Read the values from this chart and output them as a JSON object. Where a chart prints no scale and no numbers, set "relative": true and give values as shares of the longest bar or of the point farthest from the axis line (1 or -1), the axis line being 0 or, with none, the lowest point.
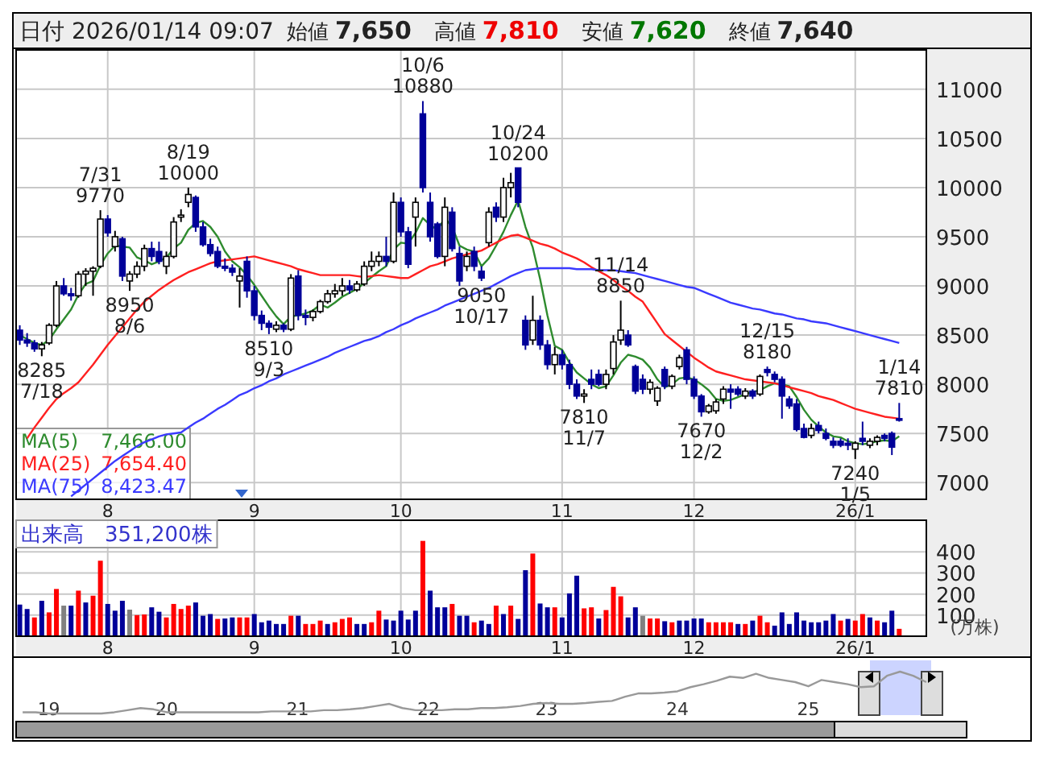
{
  "chart_data": [
    {
      "type": "candlestick",
      "title": "日付 2026/01/14 09:07",
      "categories": [
        null,
        null,
        null,
        null,
        null,
        null,
        null,
        null,
        null,
        null,
        null,
        null,
        "8",
        null,
        null,
        null,
        null,
        null,
        null,
        null,
        null,
        null,
        null,
        null,
        null,
        null,
        null,
        null,
        null,
        null,
        null,
        null,
        "9",
        null,
        null,
        null,
        null,
        null,
        null,
        null,
        null,
        null,
        null,
        null,
        null,
        null,
        null,
        null,
        null,
        null,
        null,
        null,
        "10",
        null,
        null,
        null,
        null,
        null,
        null,
        null,
        null,
        null,
        null,
        null,
        null,
        null,
        null,
        null,
        null,
        null,
        null,
        null,
        null,
        null,
        "11",
        null,
        null,
        null,
        null,
        null,
        null,
        null,
        null,
        null,
        null,
        null,
        null,
        null,
        null,
        null,
        null,
        null,
        "12",
        null,
        null,
        null,
        null,
        null,
        null,
        null,
        null,
        null,
        null,
        null,
        null,
        null,
        null,
        null,
        null,
        null,
        null,
        null,
        null,
        null,
        "26/1",
        null,
        null,
        null,
        null,
        null,
        null
      ],
      "ohlc": [
        [
          8550,
          8600,
          8400,
          8450
        ],
        [
          8450,
          8520,
          8380,
          8420
        ],
        [
          8420,
          8450,
          8330,
          8360
        ],
        [
          8360,
          8430,
          8285,
          8400
        ],
        [
          8420,
          8620,
          8400,
          8600
        ],
        [
          8600,
          9050,
          8580,
          9000
        ],
        [
          9000,
          9080,
          8900,
          8920
        ],
        [
          8920,
          8980,
          8850,
          8900
        ],
        [
          8900,
          9150,
          8880,
          9120
        ],
        [
          9120,
          9180,
          9000,
          9150
        ],
        [
          9150,
          9200,
          8900,
          9180
        ],
        [
          9200,
          9770,
          9180,
          9680
        ],
        [
          9680,
          9720,
          9500,
          9540
        ],
        [
          9400,
          9560,
          9350,
          9500
        ],
        [
          9480,
          9500,
          9050,
          9100
        ],
        [
          9050,
          9150,
          8950,
          9120
        ],
        [
          9120,
          9250,
          9080,
          9200
        ],
        [
          9200,
          9420,
          9150,
          9380
        ],
        [
          9380,
          9450,
          9250,
          9300
        ],
        [
          9350,
          9450,
          9220,
          9250
        ],
        [
          9200,
          9350,
          9120,
          9300
        ],
        [
          9300,
          9700,
          9280,
          9650
        ],
        [
          9700,
          9780,
          9650,
          9720
        ],
        [
          9850,
          10000,
          9800,
          9930
        ],
        [
          9900,
          9920,
          9550,
          9600
        ],
        [
          9600,
          9650,
          9400,
          9420
        ],
        [
          9420,
          9480,
          9300,
          9330
        ],
        [
          9350,
          9400,
          9180,
          9200
        ],
        [
          9200,
          9280,
          9150,
          9180
        ],
        [
          9180,
          9220,
          9100,
          9140
        ],
        [
          9050,
          9180,
          8780,
          9100
        ],
        [
          9250,
          9300,
          8880,
          8950
        ],
        [
          8950,
          9000,
          8650,
          8700
        ],
        [
          8700,
          8750,
          8550,
          8620
        ],
        [
          8620,
          8650,
          8510,
          8580
        ],
        [
          8560,
          8640,
          8530,
          8600
        ],
        [
          8600,
          8620,
          8530,
          8560
        ],
        [
          8560,
          9120,
          8540,
          9080
        ],
        [
          9100,
          9160,
          8650,
          8700
        ],
        [
          8700,
          8760,
          8600,
          8680
        ],
        [
          8680,
          8760,
          8640,
          8740
        ],
        [
          8740,
          8860,
          8720,
          8840
        ],
        [
          8840,
          8960,
          8820,
          8920
        ],
        [
          8920,
          9020,
          8880,
          8950
        ],
        [
          8950,
          9080,
          8900,
          9000
        ],
        [
          9000,
          9060,
          8920,
          8960
        ],
        [
          8960,
          9050,
          8940,
          9020
        ],
        [
          9020,
          9250,
          9000,
          9200
        ],
        [
          9200,
          9350,
          9150,
          9250
        ],
        [
          9250,
          9350,
          9200,
          9300
        ],
        [
          9300,
          9500,
          9200,
          9250
        ],
        [
          9250,
          9950,
          9230,
          9850
        ],
        [
          9850,
          9900,
          9500,
          9550
        ],
        [
          9550,
          9600,
          9180,
          9220
        ],
        [
          9700,
          9900,
          9400,
          9850
        ],
        [
          10750,
          10880,
          9950,
          10000
        ],
        [
          9850,
          9950,
          9450,
          9500
        ],
        [
          9630,
          9650,
          9280,
          9300
        ],
        [
          9300,
          9900,
          9200,
          9800
        ],
        [
          9750,
          9800,
          9350,
          9380
        ],
        [
          9330,
          9400,
          9000,
          9050
        ],
        [
          9200,
          9350,
          9150,
          9300
        ],
        [
          9350,
          9400,
          9150,
          9200
        ],
        [
          9150,
          9200,
          9050,
          9080
        ],
        [
          9440,
          9800,
          9400,
          9750
        ],
        [
          9800,
          9850,
          9650,
          9700
        ],
        [
          9700,
          10100,
          9650,
          10000
        ],
        [
          10000,
          10150,
          9900,
          10050
        ],
        [
          10200,
          10200,
          9800,
          9850
        ],
        [
          8650,
          8700,
          8350,
          8400
        ],
        [
          8450,
          8900,
          8400,
          8650
        ],
        [
          8650,
          8700,
          8350,
          8400
        ],
        [
          8400,
          8450,
          8150,
          8200
        ],
        [
          8200,
          8380,
          8100,
          8300
        ],
        [
          8300,
          8350,
          8150,
          8200
        ],
        [
          8200,
          8250,
          7950,
          8000
        ],
        [
          8000,
          8050,
          7850,
          7880
        ],
        [
          7880,
          7950,
          7810,
          7900
        ],
        [
          8050,
          8150,
          7950,
          8000
        ],
        [
          8100,
          8150,
          7980,
          8000
        ],
        [
          8000,
          8150,
          7950,
          8100
        ],
        [
          8160,
          8500,
          8100,
          8430
        ],
        [
          8450,
          8850,
          8400,
          8550
        ],
        [
          8500,
          8550,
          8380,
          8400
        ],
        [
          8180,
          8200,
          7900,
          7930
        ],
        [
          8050,
          8100,
          7900,
          7950
        ],
        [
          7950,
          8050,
          7900,
          8020
        ],
        [
          7830,
          7980,
          7780,
          7960
        ],
        [
          8150,
          8180,
          7950,
          7980
        ],
        [
          7980,
          8100,
          7950,
          8080
        ],
        [
          8180,
          8300,
          8150,
          8270
        ],
        [
          8350,
          8380,
          8000,
          8050
        ],
        [
          8050,
          8080,
          7850,
          7880
        ],
        [
          7880,
          7900,
          7670,
          7720
        ],
        [
          7720,
          7800,
          7700,
          7780
        ],
        [
          7730,
          7850,
          7700,
          7820
        ],
        [
          7850,
          7980,
          7800,
          7950
        ],
        [
          7950,
          8000,
          7750,
          7920
        ],
        [
          7950,
          7980,
          7880,
          7900
        ],
        [
          7880,
          7960,
          7850,
          7930
        ],
        [
          7930,
          7950,
          7850,
          7880
        ],
        [
          7900,
          8100,
          7880,
          8080
        ],
        [
          8150,
          8180,
          8080,
          8120
        ],
        [
          8100,
          8130,
          8020,
          8050
        ],
        [
          8050,
          8080,
          7650,
          7880
        ],
        [
          7850,
          7880,
          7750,
          7780
        ],
        [
          7800,
          7850,
          7520,
          7540
        ],
        [
          7550,
          7600,
          7450,
          7460
        ],
        [
          7480,
          7600,
          7450,
          7550
        ],
        [
          7580,
          7620,
          7500,
          7530
        ],
        [
          7500,
          7550,
          7430,
          7450
        ],
        [
          7420,
          7460,
          7350,
          7380
        ],
        [
          7420,
          7450,
          7360,
          7380
        ],
        [
          7400,
          7450,
          7330,
          7380
        ],
        [
          7340,
          7420,
          7240,
          7400
        ],
        [
          7450,
          7620,
          7380,
          7420
        ],
        [
          7380,
          7450,
          7350,
          7420
        ],
        [
          7420,
          7480,
          7380,
          7460
        ],
        [
          7480,
          7500,
          7420,
          7450
        ],
        [
          7500,
          7520,
          7280,
          7360
        ],
        [
          7650,
          7810,
          7620,
          7640
        ]
      ],
      "series": [
        {
          "name": "MA(5) 7,466.00",
          "type": "line",
          "color": "#2e8b2e",
          "values": [
            8500,
            8460,
            8420,
            8400,
            8450,
            8560,
            8660,
            8760,
            8910,
            9020,
            9050,
            9210,
            9330,
            9410,
            9400,
            9390,
            9290,
            9260,
            9220,
            9250,
            9290,
            9380,
            9440,
            9570,
            9640,
            9660,
            9600,
            9500,
            9350,
            9250,
            9190,
            9110,
            9010,
            8900,
            8790,
            8690,
            8610,
            8690,
            8700,
            8720,
            8750,
            8810,
            8780,
            8830,
            8890,
            8930,
            8970,
            9030,
            9090,
            9150,
            9200,
            9370,
            9440,
            9430,
            9540,
            9690,
            9620,
            9570,
            9690,
            9600,
            9410,
            9370,
            9350,
            9200,
            9280,
            9410,
            9550,
            9720,
            9870,
            9600,
            9390,
            9070,
            8700,
            8390,
            8350,
            8220,
            8120,
            8060,
            8000,
            7960,
            7980,
            8090,
            8220,
            8300,
            8280,
            8250,
            8170,
            8050,
            7970,
            8000,
            8060,
            8070,
            8050,
            8000,
            7940,
            7850,
            7830,
            7840,
            7870,
            7900,
            7920,
            7940,
            7980,
            8010,
            8000,
            7980,
            7870,
            7740,
            7640,
            7570,
            7510,
            7470,
            7460,
            7420,
            7400,
            7390,
            7400,
            7420,
            7430,
            7420,
            7470
          ]
        },
        {
          "name": "MA(25) 7,654.40",
          "type": "line",
          "color": "#ff2020",
          "values": [
            null,
            7450,
            7560,
            7660,
            7760,
            7850,
            7910,
            7960,
            8020,
            8110,
            8200,
            8300,
            8400,
            8490,
            8580,
            8670,
            8760,
            8840,
            8900,
            8960,
            9010,
            9060,
            9100,
            9140,
            9170,
            9200,
            9230,
            9250,
            9260,
            9270,
            9280,
            9290,
            9300,
            9280,
            9260,
            9240,
            9220,
            9200,
            9170,
            9150,
            9130,
            9110,
            9110,
            9110,
            9110,
            9110,
            9100,
            9090,
            9100,
            9110,
            9100,
            9090,
            9080,
            9080,
            9120,
            9160,
            9200,
            9220,
            9250,
            9280,
            9300,
            9320,
            9340,
            9360,
            9400,
            9440,
            9480,
            9510,
            9520,
            9490,
            9460,
            9430,
            9410,
            9380,
            9340,
            9310,
            9280,
            9240,
            9190,
            9150,
            9110,
            9060,
            9000,
            8950,
            8890,
            8840,
            8730,
            8620,
            8510,
            8450,
            8390,
            8330,
            8270,
            8220,
            8170,
            8130,
            8110,
            8090,
            8070,
            8050,
            8040,
            8030,
            8020,
            8010,
            7990,
            7970,
            7950,
            7930,
            7910,
            7880,
            7860,
            7840,
            7810,
            7780,
            7750,
            7730,
            7710,
            7690,
            7670,
            7660,
            7650
          ]
        },
        {
          "name": "MA(75) 8,423.47",
          "type": "line",
          "color": "#3a3aff",
          "values": [
            null,
            null,
            null,
            null,
            null,
            null,
            null,
            6860,
            6920,
            6980,
            7040,
            7100,
            7160,
            7220,
            7270,
            7320,
            7370,
            7410,
            7440,
            7470,
            7490,
            7500,
            7510,
            7560,
            7610,
            7650,
            7700,
            7750,
            7790,
            7840,
            7890,
            7920,
            7960,
            7990,
            8030,
            8060,
            8100,
            8130,
            8160,
            8190,
            8220,
            8250,
            8280,
            8320,
            8350,
            8380,
            8410,
            8440,
            8460,
            8490,
            8530,
            8560,
            8600,
            8630,
            8670,
            8700,
            8730,
            8760,
            8800,
            8830,
            8860,
            8890,
            8920,
            8950,
            8980,
            9020,
            9060,
            9100,
            9130,
            9160,
            9170,
            9180,
            9180,
            9180,
            9180,
            9180,
            9170,
            9170,
            9170,
            9160,
            9160,
            9160,
            9150,
            9140,
            9130,
            9110,
            9090,
            9070,
            9050,
            9030,
            9010,
            8990,
            8980,
            8950,
            8920,
            8890,
            8860,
            8830,
            8810,
            8790,
            8770,
            8760,
            8740,
            8720,
            8710,
            8690,
            8670,
            8660,
            8640,
            8630,
            8620,
            8600,
            8580,
            8560,
            8540,
            8520,
            8500,
            8480,
            8460,
            8440,
            8420
          ]
        }
      ],
      "ylim": [
        6830,
        11400
      ],
      "yticks": [
        7000,
        7500,
        8000,
        8500,
        9000,
        9500,
        10000,
        10500,
        11000
      ],
      "grid": true,
      "legend": "bottom left",
      "annotations": [
        "始値 7,650",
        "高値 7,810",
        "安値 7,620",
        "終値 7,640",
        {
          "text": "8285\n7/18",
          "y": 8285
        },
        {
          "text": "7/31\n9770",
          "y": 9770
        },
        {
          "text": "8950\n8/6",
          "y": 8950
        },
        {
          "text": "8/19\n10000",
          "y": 10000
        },
        {
          "text": "8510\n9/3",
          "y": 8510
        },
        {
          "text": "10/6\n10880",
          "y": 10880
        },
        {
          "text": "9050\n10/17",
          "y": 9050
        },
        {
          "text": "10/24\n10200",
          "y": 10200
        },
        {
          "text": "7810\n11/7",
          "y": 7810
        },
        {
          "text": "11/14\n8850",
          "y": 8850
        },
        {
          "text": "7670\n12/2",
          "y": 7670
        },
        {
          "text": "12/15\n8180",
          "y": 8180
        },
        {
          "text": "7240\n1/5",
          "y": 7240
        },
        {
          "text": "1/14\n7810",
          "y": 7810
        }
      ]
    },
    {
      "type": "bar",
      "title": "出来高　351,200株",
      "categories": [
        null,
        null,
        null,
        null,
        null,
        null,
        null,
        null,
        null,
        null,
        null,
        null,
        "8",
        null,
        null,
        null,
        null,
        null,
        null,
        null,
        null,
        null,
        null,
        null,
        null,
        null,
        null,
        null,
        null,
        null,
        null,
        null,
        "9",
        null,
        null,
        null,
        null,
        null,
        null,
        null,
        null,
        null,
        null,
        null,
        null,
        null,
        null,
        null,
        null,
        null,
        null,
        null,
        "10",
        null,
        null,
        null,
        null,
        null,
        null,
        null,
        null,
        null,
        null,
        null,
        null,
        null,
        null,
        null,
        null,
        null,
        null,
        null,
        null,
        null,
        "11",
        null,
        null,
        null,
        null,
        null,
        null,
        null,
        null,
        null,
        null,
        null,
        null,
        null,
        null,
        null,
        null,
        null,
        "12",
        null,
        null,
        null,
        null,
        null,
        null,
        null,
        null,
        null,
        null,
        null,
        null,
        null,
        null,
        null,
        null,
        null,
        null,
        null,
        null,
        null,
        "26/1",
        null,
        null,
        null,
        null,
        null,
        null
      ],
      "values": [
        150,
        129,
        89,
        168,
        113,
        224,
        145,
        145,
        216,
        160,
        192,
        358,
        153,
        121,
        168,
        126,
        100,
        103,
        137,
        116,
        89,
        153,
        129,
        145,
        160,
        97,
        105,
        82,
        84,
        89,
        89,
        89,
        105,
        66,
        74,
        58,
        58,
        97,
        97,
        58,
        58,
        74,
        58,
        66,
        82,
        89,
        58,
        58,
        66,
        121,
        79,
        74,
        121,
        79,
        121,
        452,
        216,
        137,
        137,
        153,
        97,
        97,
        66,
        74,
        58,
        145,
        105,
        145,
        82,
        313,
        392,
        155,
        137,
        137,
        89,
        203,
        287,
        132,
        137,
        84,
        124,
        234,
        189,
        89,
        137,
        97,
        84,
        84,
        71,
        66,
        74,
        74,
        84,
        84,
        66,
        66,
        66,
        66,
        58,
        58,
        74,
        97,
        66,
        50,
        113,
        58,
        113,
        74,
        66,
        66,
        74,
        105,
        74,
        82,
        74,
        105,
        89,
        74,
        66,
        121,
        35
      ],
      "colors": [
        "#000099",
        "#000099",
        "#ff0000",
        "#000099",
        "#ff0000",
        "#ff0000",
        "#808080",
        "#000099",
        "#ff0000",
        "#000099",
        "#ff0000",
        "#ff0000",
        "#000099",
        "#000099",
        "#000099",
        "#808080",
        "#ff0000",
        "#ff0000",
        "#000099",
        "#000099",
        "#ff0000",
        "#ff0000",
        "#ff0000",
        "#ff0000",
        "#000099",
        "#000099",
        "#000099",
        "#ff0000",
        "#000099",
        "#000099",
        "#ff0000",
        "#ff0000",
        "#000099",
        "#000099",
        "#000099",
        "#000099",
        "#000099",
        "#ff0000",
        "#000099",
        "#ff0000",
        "#ff0000",
        "#ff0000",
        "#000099",
        "#ff0000",
        "#ff0000",
        "#ff0000",
        "#000099",
        "#000099",
        "#ff0000",
        "#ff0000",
        "#000099",
        "#000099",
        "#000099",
        "#000099",
        "#000099",
        "#ff0000",
        "#000099",
        "#000099",
        "#000099",
        "#ff0000",
        "#000099",
        "#000099",
        "#ff0000",
        "#000099",
        "#000099",
        "#ff0000",
        "#000099",
        "#ff0000",
        "#000099",
        "#000099",
        "#ff0000",
        "#000099",
        "#000099",
        "#ff0000",
        "#000099",
        "#000099",
        "#000099",
        "#ff0000",
        "#ff0000",
        "#000099",
        "#ff0000",
        "#ff0000",
        "#ff0000",
        "#000099",
        "#000099",
        "#808080",
        "#ff0000",
        "#ff0000",
        "#000099",
        "#ff0000",
        "#000099",
        "#000099",
        "#000099",
        "#000099",
        "#ff0000",
        "#ff0000",
        "#ff0000",
        "#ff0000",
        "#000099",
        "#ff0000",
        "#000099",
        "#ff0000",
        "#ff0000",
        "#000099",
        "#000099",
        "#000099",
        "#000099",
        "#000099",
        "#000099",
        "#000099",
        "#000099",
        "#000099",
        "#ff0000",
        "#000099",
        "#ff0000",
        "#ff0000",
        "#000099",
        "#ff0000",
        "#000099",
        "#000099",
        "#ff0000"
      ],
      "ylim": [
        0,
        550
      ],
      "yticks": [
        100,
        200,
        300,
        400
      ],
      "ylabel": "(万株)",
      "grid": true
    },
    {
      "type": "line",
      "relative": true,
      "color": "#999999",
      "categories": [
        null,
        null,
        "19",
        null,
        null,
        null,
        null,
        null,
        null,
        null,
        null,
        "20",
        null,
        null,
        null,
        null,
        null,
        null,
        null,
        null,
        null,
        "21",
        null,
        null,
        null,
        null,
        null,
        null,
        null,
        null,
        null,
        "22",
        null,
        null,
        null,
        null,
        null,
        null,
        null,
        null,
        "23",
        null,
        null,
        null,
        null,
        null,
        null,
        null,
        null,
        null,
        "24",
        null,
        null,
        null,
        null,
        null,
        null,
        null,
        null,
        null,
        "25",
        null,
        null,
        null,
        null,
        null,
        null,
        null,
        null,
        null
      ],
      "values": [
        0.03,
        0.03,
        0,
        0,
        0,
        0,
        0,
        0.03,
        0.08,
        0.13,
        0.1,
        0.03,
        0.03,
        0.03,
        0.03,
        0.03,
        0.03,
        0.03,
        0.03,
        0.05,
        0.05,
        0.05,
        0.05,
        0.08,
        0.08,
        0.1,
        0.13,
        0.18,
        0.23,
        0.13,
        0.08,
        0.08,
        0.08,
        0.1,
        0.1,
        0.13,
        0.13,
        0.15,
        0.18,
        0.23,
        0.25,
        0.23,
        0.23,
        0.25,
        0.28,
        0.3,
        0.4,
        0.48,
        0.48,
        0.5,
        0.53,
        0.63,
        0.7,
        0.78,
        0.88,
        0.85,
        0.95,
        0.85,
        0.8,
        0.75,
        0.65,
        0.8,
        0.75,
        0.7,
        0.63,
        0.65,
        0.9,
        1,
        0.9,
        0.75
      ]
    }
  ]
}
